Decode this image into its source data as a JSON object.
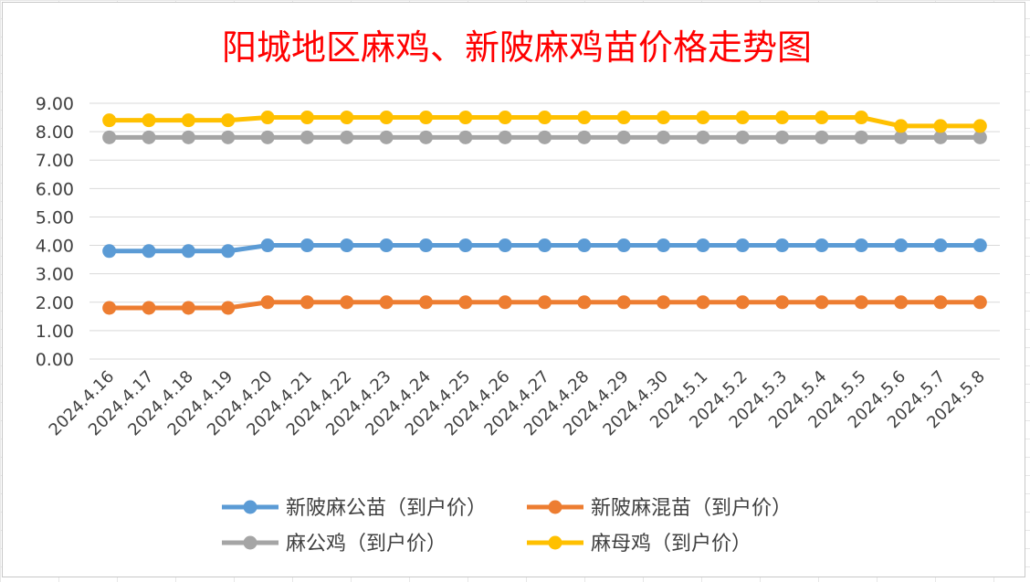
{
  "chart_data": {
    "type": "line",
    "title": "阳城地区麻鸡、新陂麻鸡苗价格走势图",
    "xlabel": "",
    "ylabel": "",
    "ylim": [
      0,
      9
    ],
    "y_ticks": [
      "9.00",
      "8.00",
      "7.00",
      "6.00",
      "5.00",
      "4.00",
      "3.00",
      "2.00",
      "1.00",
      "0.00"
    ],
    "grid": true,
    "legend_position": "bottom",
    "categories": [
      "2024.4.16",
      "2024.4.17",
      "2024.4.18",
      "2024.4.19",
      "2024.4.20",
      "2024.4.21",
      "2024.4.22",
      "2024.4.23",
      "2024.4.24",
      "2024.4.25",
      "2024.4.26",
      "2024.4.27",
      "2024.4.28",
      "2024.4.29",
      "2024.4.30",
      "2024.5.1",
      "2024.5.2",
      "2024.5.3",
      "2024.5.4",
      "2024.5.5",
      "2024.5.6",
      "2024.5.7",
      "2024.5.8"
    ],
    "series": [
      {
        "name": "新陂麻公苗（到户价）",
        "color": "#5b9bd5",
        "values": [
          3.8,
          3.8,
          3.8,
          3.8,
          4.0,
          4.0,
          4.0,
          4.0,
          4.0,
          4.0,
          4.0,
          4.0,
          4.0,
          4.0,
          4.0,
          4.0,
          4.0,
          4.0,
          4.0,
          4.0,
          4.0,
          4.0,
          4.0
        ]
      },
      {
        "name": "新陂麻混苗（到户价）",
        "color": "#ed7d31",
        "values": [
          1.8,
          1.8,
          1.8,
          1.8,
          2.0,
          2.0,
          2.0,
          2.0,
          2.0,
          2.0,
          2.0,
          2.0,
          2.0,
          2.0,
          2.0,
          2.0,
          2.0,
          2.0,
          2.0,
          2.0,
          2.0,
          2.0,
          2.0
        ]
      },
      {
        "name": "麻公鸡（到户价）",
        "color": "#a5a5a5",
        "values": [
          7.8,
          7.8,
          7.8,
          7.8,
          7.8,
          7.8,
          7.8,
          7.8,
          7.8,
          7.8,
          7.8,
          7.8,
          7.8,
          7.8,
          7.8,
          7.8,
          7.8,
          7.8,
          7.8,
          7.8,
          7.8,
          7.8,
          7.8
        ]
      },
      {
        "name": "麻母鸡（到户价）",
        "color": "#ffc000",
        "values": [
          8.4,
          8.4,
          8.4,
          8.4,
          8.5,
          8.5,
          8.5,
          8.5,
          8.5,
          8.5,
          8.5,
          8.5,
          8.5,
          8.5,
          8.5,
          8.5,
          8.5,
          8.5,
          8.5,
          8.5,
          8.2,
          8.2,
          8.2
        ]
      }
    ],
    "title_color": "#ff0000"
  }
}
